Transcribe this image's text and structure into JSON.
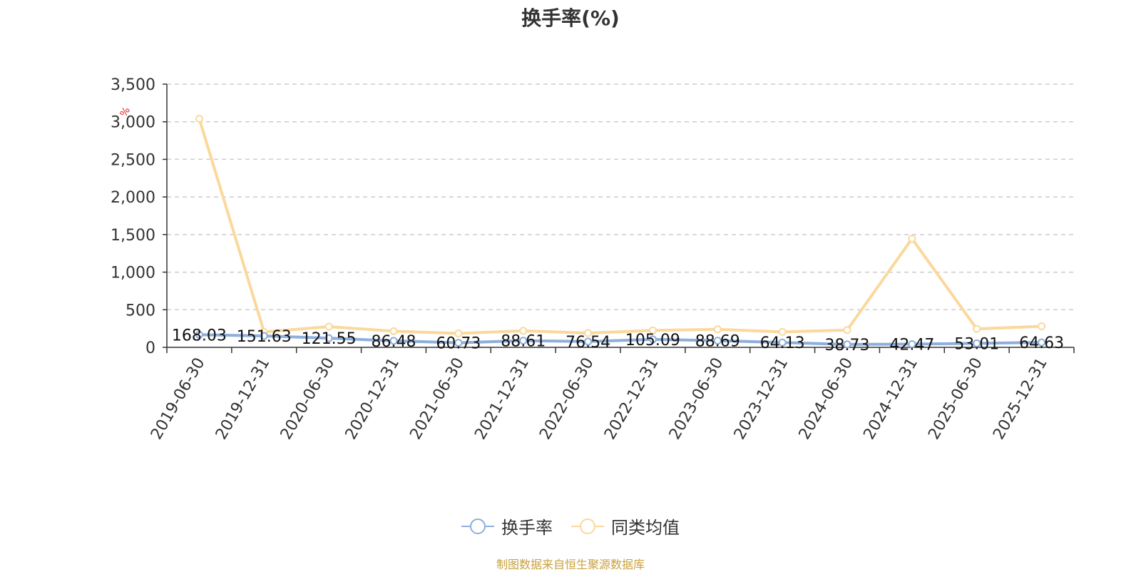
{
  "chart_data": {
    "type": "line",
    "title": "换手率(%)",
    "ylabel": "%",
    "categories": [
      "2019-06-30",
      "2019-12-31",
      "2020-06-30",
      "2020-12-31",
      "2021-06-30",
      "2021-12-31",
      "2022-06-30",
      "2022-12-31",
      "2023-06-30",
      "2023-12-31",
      "2024-06-30",
      "2024-12-31",
      "2025-06-30",
      "2025-12-31"
    ],
    "ylim": [
      0,
      3500
    ],
    "yticks": [
      0,
      500,
      1000,
      1500,
      2000,
      2500,
      3000,
      3500
    ],
    "ytick_labels": [
      "0",
      "500",
      "1,000",
      "1,500",
      "2,000",
      "2,500",
      "3,000",
      "3,500"
    ],
    "grid": true,
    "legend_position": "bottom",
    "series": [
      {
        "name": "换手率",
        "color": "#8eaedb",
        "values": [
          168.03,
          151.63,
          121.55,
          86.48,
          60.73,
          88.61,
          76.54,
          105.09,
          88.69,
          64.13,
          38.73,
          42.47,
          53.01,
          64.63
        ],
        "labels": [
          "168.03",
          "151.63",
          "121.55",
          "86.48",
          "60.73",
          "88.61",
          "76.54",
          "105.09",
          "88.69",
          "64.13",
          "38.73",
          "42.47",
          "53.01",
          "64.63"
        ]
      },
      {
        "name": "同类均值",
        "color": "#fbd89b",
        "values": [
          3040,
          205,
          275,
          215,
          185,
          220,
          190,
          225,
          240,
          205,
          230,
          1445,
          245,
          280
        ]
      }
    ]
  },
  "footer": "制图数据来自恒生聚源数据库"
}
